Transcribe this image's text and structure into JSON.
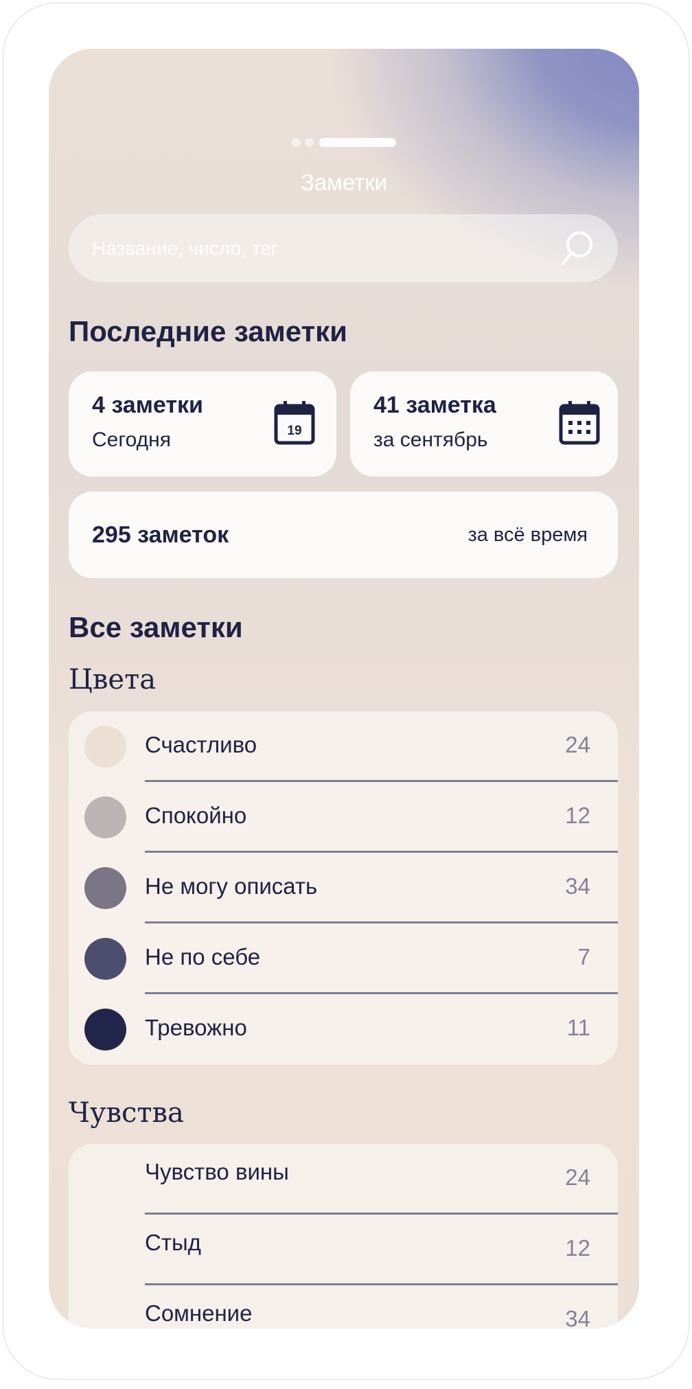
{
  "header": {
    "title": "Заметки",
    "page_indicator": {
      "pages": 3,
      "active": 3
    }
  },
  "search": {
    "placeholder": "Название, число, тег",
    "icon": "search-icon"
  },
  "recent": {
    "heading": "Последние заметки",
    "today": {
      "title": "4 заметки",
      "subtitle": "Сегодня",
      "icon": "calendar-day-icon",
      "icon_text": "19"
    },
    "month": {
      "title": "41 заметка",
      "subtitle": "за сентябрь",
      "icon": "calendar-month-icon"
    },
    "all": {
      "title": "295 заметок",
      "subtitle": "за всё время"
    }
  },
  "all_notes": {
    "heading": "Все заметки"
  },
  "colors": {
    "heading": "Цвета",
    "items": [
      {
        "label": "Счастливо",
        "count": "24",
        "color": "#ecdfd4"
      },
      {
        "label": "Спокойно",
        "count": "12",
        "color": "#bcb3b4"
      },
      {
        "label": "Не могу описать",
        "count": "34",
        "color": "#7a7687"
      },
      {
        "label": "Не по себе",
        "count": "7",
        "color": "#4c4e70"
      },
      {
        "label": "Тревожно",
        "count": "11",
        "color": "#22254a"
      }
    ]
  },
  "feelings": {
    "heading": "Чувства",
    "items": [
      {
        "label": "Чувство вины",
        "count": "24"
      },
      {
        "label": "Стыд",
        "count": "12"
      },
      {
        "label": "Сомнение",
        "count": "34"
      }
    ]
  }
}
